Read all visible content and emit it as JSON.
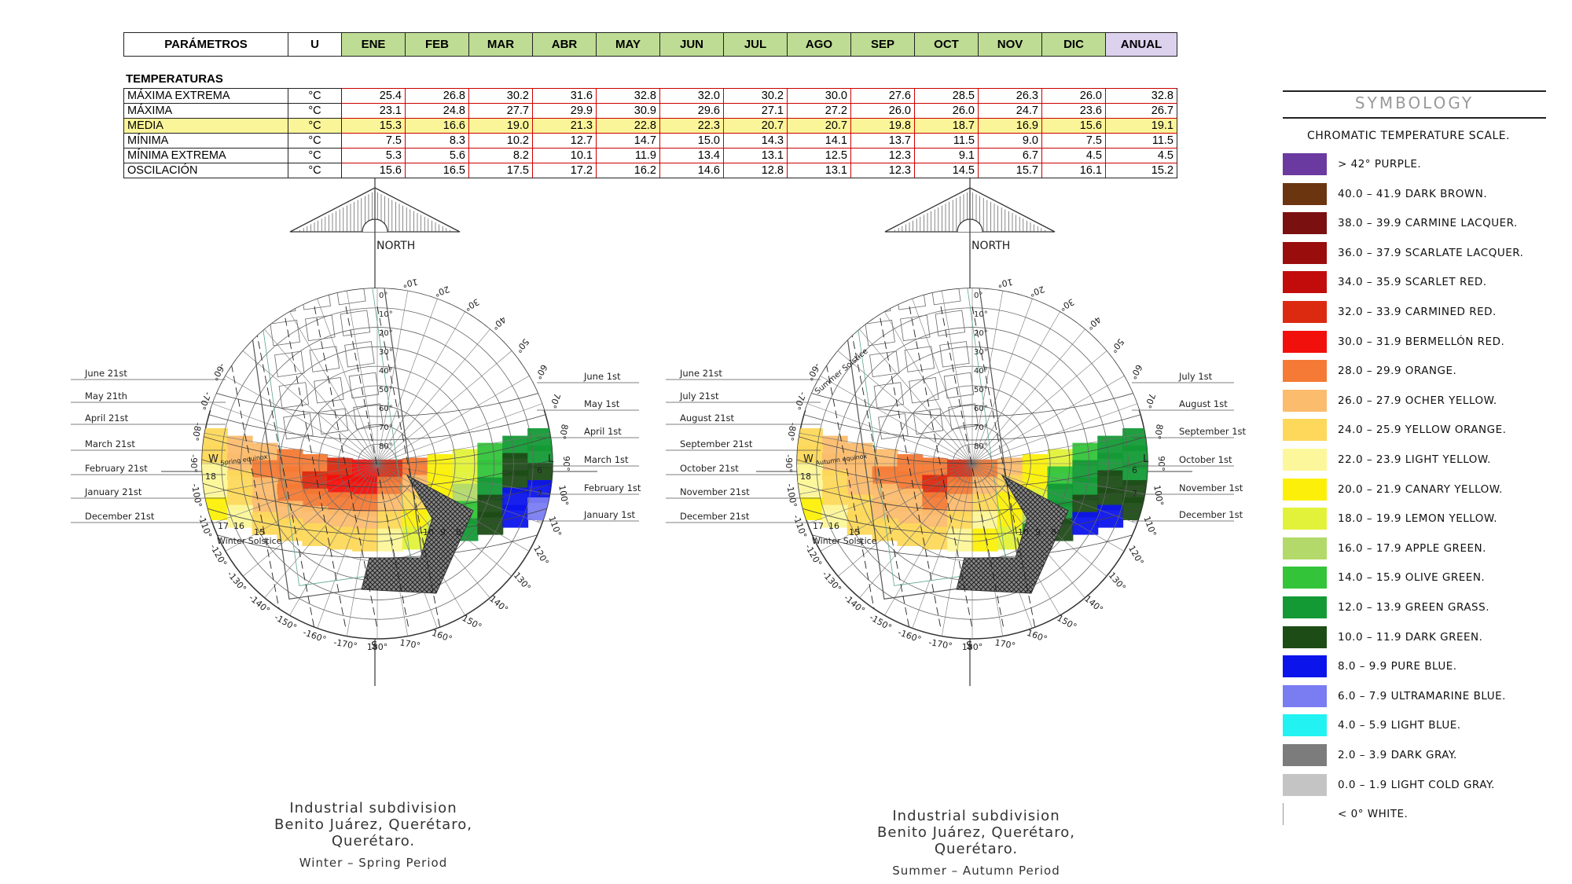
{
  "table": {
    "headers": [
      "PARÁMETROS",
      "U",
      "ENE",
      "FEB",
      "MAR",
      "ABR",
      "MAY",
      "JUN",
      "JUL",
      "AGO",
      "SEP",
      "OCT",
      "NOV",
      "DIC",
      "ANUAL"
    ],
    "section_title": "TEMPERATURAS",
    "rows": [
      {
        "label": "MÁXIMA EXTREMA",
        "unit": "°C",
        "values": [
          "25.4",
          "26.8",
          "30.2",
          "31.6",
          "32.8",
          "32.0",
          "30.2",
          "30.0",
          "27.6",
          "28.5",
          "26.3",
          "26.0",
          "32.8"
        ]
      },
      {
        "label": "MÁXIMA",
        "unit": "°C",
        "values": [
          "23.1",
          "24.8",
          "27.7",
          "29.9",
          "30.9",
          "29.6",
          "27.1",
          "27.2",
          "26.0",
          "26.0",
          "24.7",
          "23.6",
          "26.7"
        ]
      },
      {
        "label": "MEDIA",
        "unit": "°C",
        "values": [
          "15.3",
          "16.6",
          "19.0",
          "21.3",
          "22.8",
          "22.3",
          "20.7",
          "20.7",
          "19.8",
          "18.7",
          "16.9",
          "15.6",
          "19.1"
        ]
      },
      {
        "label": "MÍNIMA",
        "unit": "°C",
        "values": [
          "7.5",
          "8.3",
          "10.2",
          "12.7",
          "14.7",
          "15.0",
          "14.3",
          "14.1",
          "13.7",
          "11.5",
          "9.0",
          "7.5",
          "11.5"
        ]
      },
      {
        "label": "MÍNIMA EXTREMA",
        "unit": "°C",
        "values": [
          "5.3",
          "5.6",
          "8.2",
          "10.1",
          "11.9",
          "13.4",
          "13.1",
          "12.5",
          "12.3",
          "9.1",
          "6.7",
          "4.5",
          "4.5"
        ]
      },
      {
        "label": "OSCILACIÓN",
        "unit": "°C",
        "values": [
          "15.6",
          "16.5",
          "17.5",
          "17.2",
          "16.2",
          "14.6",
          "12.8",
          "13.1",
          "12.3",
          "14.5",
          "15.7",
          "16.1",
          "15.2"
        ]
      }
    ]
  },
  "diagrams": [
    {
      "north_label": "NORTH",
      "south_label": "S",
      "west_label": "W",
      "east_label": "L",
      "left_dates": [
        "June 21st",
        "May 21th",
        "April 21st",
        "March 21st",
        "February 21st",
        "January 21st",
        "December 21st"
      ],
      "right_dates": [
        "June 1st",
        "May 1st",
        "April 1st",
        "March 1st",
        "February 1st",
        "January 1st"
      ],
      "equinox_label": "Spring equinox",
      "solstice_label": "Winter Solstice",
      "caption_line1": "Industrial subdivision",
      "caption_line2": "Benito Juárez, Querétaro,",
      "caption_line3": "Querétaro.",
      "period": "Winter – Spring Period"
    },
    {
      "north_label": "NORTH",
      "south_label": "S",
      "west_label": "W",
      "east_label": "L",
      "left_dates": [
        "June 21st",
        "July 21st",
        "August 21st",
        "September 21st",
        "October 21st",
        "November 21st",
        "December 21st"
      ],
      "right_dates": [
        "July 1st",
        "August 1st",
        "September 1st",
        "October 1st",
        "November 1st",
        "December 1st"
      ],
      "equinox_label": "Autumn equinox",
      "summer_label": "Summer Solstice",
      "solstice_label": "Winter Solstice",
      "caption_line1": "Industrial subdivision",
      "caption_line2": "Benito Juárez, Querétaro,",
      "caption_line3": "Querétaro.",
      "period": "Summer – Autumn Period"
    }
  ],
  "azimuth_labels": [
    "170°",
    "160°",
    "150°",
    "140°",
    "130°",
    "120°",
    "110°",
    "100°",
    "90°",
    "80°",
    "70°",
    "60°",
    "50°",
    "40°",
    "30°",
    "20°",
    "10°",
    "180°",
    "-170°",
    "-160°",
    "-150°",
    "-140°",
    "-130°",
    "-120°",
    "-110°",
    "-100°",
    "-90°",
    "-80°",
    "-70°",
    "-60°"
  ],
  "altitude_labels": [
    "0°",
    "10°",
    "20°",
    "30°",
    "40°",
    "50°",
    "60°",
    "70°",
    "80°"
  ],
  "hour_labels": [
    "6",
    "7",
    "18",
    "17",
    "16",
    "15",
    "10",
    "9",
    "8"
  ],
  "legend": {
    "title": "SYMBOLOGY",
    "subtitle": "CHROMATIC TEMPERATURE SCALE.",
    "items": [
      {
        "label": "> 42° PURPLE.",
        "color": "#6b3aa0"
      },
      {
        "label": "40.0 – 41.9 DARK BROWN.",
        "color": "#6b3510"
      },
      {
        "label": "38.0 – 39.9 CARMINE LACQUER.",
        "color": "#7b1010"
      },
      {
        "label": "36.0 – 37.9 SCARLATE LACQUER.",
        "color": "#9a0d0d"
      },
      {
        "label": "34.0 – 35.9 SCARLET RED.",
        "color": "#c20c0c"
      },
      {
        "label": "32.0 – 33.9 CARMINED RED.",
        "color": "#dc2a10"
      },
      {
        "label": "30.0 – 31.9 BERMELLÓN RED.",
        "color": "#f2100c"
      },
      {
        "label": "28.0 – 29.9 ORANGE.",
        "color": "#f47a35"
      },
      {
        "label": "26.0 – 27.9 OCHER YELLOW.",
        "color": "#fbbc6e"
      },
      {
        "label": "24.0 – 25.9 YELLOW ORANGE.",
        "color": "#fdd85a"
      },
      {
        "label": "22.0 – 23.9 LIGHT YELLOW.",
        "color": "#fcf79a"
      },
      {
        "label": "20.0 – 21.9 CANARY YELLOW.",
        "color": "#fcf00a"
      },
      {
        "label": "18.0 – 19.9 LEMON YELLOW.",
        "color": "#e2f23a"
      },
      {
        "label": "16.0 – 17.9 APPLE GREEN.",
        "color": "#b2d96a"
      },
      {
        "label": "14.0 – 15.9 OLIVE GREEN.",
        "color": "#33c43a"
      },
      {
        "label": "12.0 – 13.9 GREEN GRASS.",
        "color": "#139a35"
      },
      {
        "label": "10.0 – 11.9 DARK GREEN.",
        "color": "#1e4c17"
      },
      {
        "label": "8.0 – 9.9 PURE BLUE.",
        "color": "#0c14ec"
      },
      {
        "label": "6.0 – 7.9 ULTRAMARINE BLUE.",
        "color": "#7a7cf2"
      },
      {
        "label": "4.0 – 5.9 LIGHT BLUE.",
        "color": "#22f2f2"
      },
      {
        "label": "2.0 – 3.9 DARK GRAY.",
        "color": "#7c7c7c"
      },
      {
        "label": "0.0 – 1.9 LIGHT COLD GRAY.",
        "color": "#c4c4c4"
      },
      {
        "label": "< 0° WHITE.",
        "color": "#ffffff"
      }
    ]
  },
  "diagram1_grid": [
    [
      "#fdd85a",
      "#fbbc6e",
      "#fbbc6e",
      "#f47a35",
      "#f47a35",
      "#dc2a10",
      "#f2100c",
      "#dc2a10",
      "#f47a35",
      "#fcf00a",
      "#e2f23a",
      "#33c43a",
      "#139a35",
      "#139a35"
    ],
    [
      "#fdd85a",
      "#fbbc6e",
      "#f47a35",
      "#f47a35",
      "#dc2a10",
      "#f2100c",
      "#f2100c",
      "#f47a35",
      "#fbbc6e",
      "#fcf00a",
      "#e2f23a",
      "#33c43a",
      "#1e4c17",
      "#139a35"
    ],
    [
      "#fcf79a",
      "#fdd85a",
      "#fbbc6e",
      "#f47a35",
      "#f47a35",
      "#f47a35",
      "#f47a35",
      "#fbbc6e",
      "#fdd85a",
      "#fcf00a",
      "#b2d96a",
      "#139a35",
      "#1e4c17",
      "#1e4c17"
    ],
    [
      "#fcf79a",
      "#fdd85a",
      "#fbbc6e",
      "#fbbc6e",
      "#fbbc6e",
      "#fbbc6e",
      "#fbbc6e",
      "#fdd85a",
      "#fcf00a",
      "#e2f23a",
      "#33c43a",
      "#1e4c17",
      "#0c14ec",
      "#0c14ec"
    ],
    [
      "#fcf00a",
      "#fcf79a",
      "#fdd85a",
      "#fdd85a",
      "#fdd85a",
      "#fdd85a",
      "#fdd85a",
      "#fcf79a",
      "#e2f23a",
      "#b2d96a",
      "#139a35",
      "#1e4c17",
      "#0c14ec",
      "#7a7cf2"
    ]
  ],
  "diagram2_grid": [
    [
      "#fdd85a",
      "#fbbc6e",
      "#fbbc6e",
      "#fbbc6e",
      "#f47a35",
      "#f47a35",
      "#dc2a10",
      "#f47a35",
      "#fbbc6e",
      "#fcf00a",
      "#e2f23a",
      "#33c43a",
      "#139a35",
      "#139a35"
    ],
    [
      "#fdd85a",
      "#fbbc6e",
      "#fbbc6e",
      "#f47a35",
      "#f47a35",
      "#dc2a10",
      "#f47a35",
      "#fbbc6e",
      "#fdd85a",
      "#fcf00a",
      "#33c43a",
      "#139a35",
      "#139a35",
      "#139a35"
    ],
    [
      "#fcf79a",
      "#fdd85a",
      "#fbbc6e",
      "#fbbc6e",
      "#fbbc6e",
      "#f47a35",
      "#fbbc6e",
      "#fdd85a",
      "#fcf00a",
      "#e2f23a",
      "#139a35",
      "#139a35",
      "#1e4c17",
      "#139a35"
    ],
    [
      "#fcf79a",
      "#fdd85a",
      "#fdd85a",
      "#fbbc6e",
      "#fbbc6e",
      "#fbbc6e",
      "#fdd85a",
      "#fcf79a",
      "#fcf00a",
      "#b2d96a",
      "#139a35",
      "#1e4c17",
      "#1e4c17",
      "#1e4c17"
    ],
    [
      "#fcf00a",
      "#fcf79a",
      "#fdd85a",
      "#fdd85a",
      "#fdd85a",
      "#fdd85a",
      "#fcf79a",
      "#fcf00a",
      "#e2f23a",
      "#139a35",
      "#1e4c17",
      "#0c14ec",
      "#0c14ec",
      "#1e4c17"
    ]
  ]
}
